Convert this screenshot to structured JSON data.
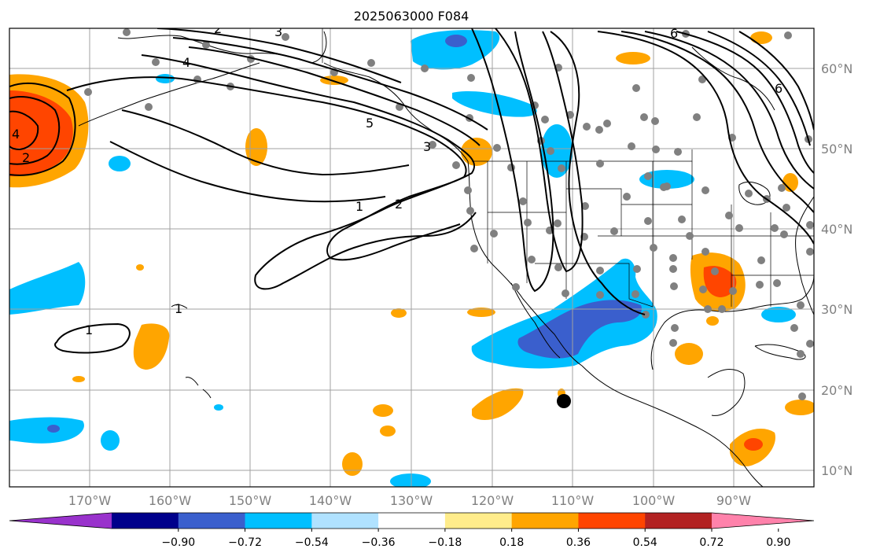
{
  "title": "2025063000 F084",
  "lon_labels": [
    "170°W",
    "160°W",
    "150°W",
    "140°W",
    "130°W",
    "120°W",
    "110°W",
    "100°W",
    "90°W"
  ],
  "lat_labels": [
    "60°N",
    "50°N",
    "40°N",
    "30°N",
    "20°N",
    "10°N"
  ],
  "colorbar": {
    "ticks": [
      "−0.90",
      "−0.72",
      "−0.54",
      "−0.36",
      "−0.18",
      "0.18",
      "0.36",
      "0.54",
      "0.72",
      "0.90"
    ],
    "colors": [
      "#9932cc",
      "#00008b",
      "#3a5fcd",
      "#00bfff",
      "#b0e2ff",
      "#ffffff",
      "#ffec8b",
      "#ffa500",
      "#ff4500",
      "#b22222",
      "#ff82ab"
    ]
  },
  "contour_labels": [
    "1",
    "1",
    "1",
    "2",
    "2",
    "2",
    "3",
    "3",
    "4",
    "4",
    "5",
    "6",
    "6"
  ],
  "colors": {
    "station_dot": "#808080",
    "storm_marker": "#000000",
    "grid": "#a0a0a0",
    "coast": "#000000"
  }
}
